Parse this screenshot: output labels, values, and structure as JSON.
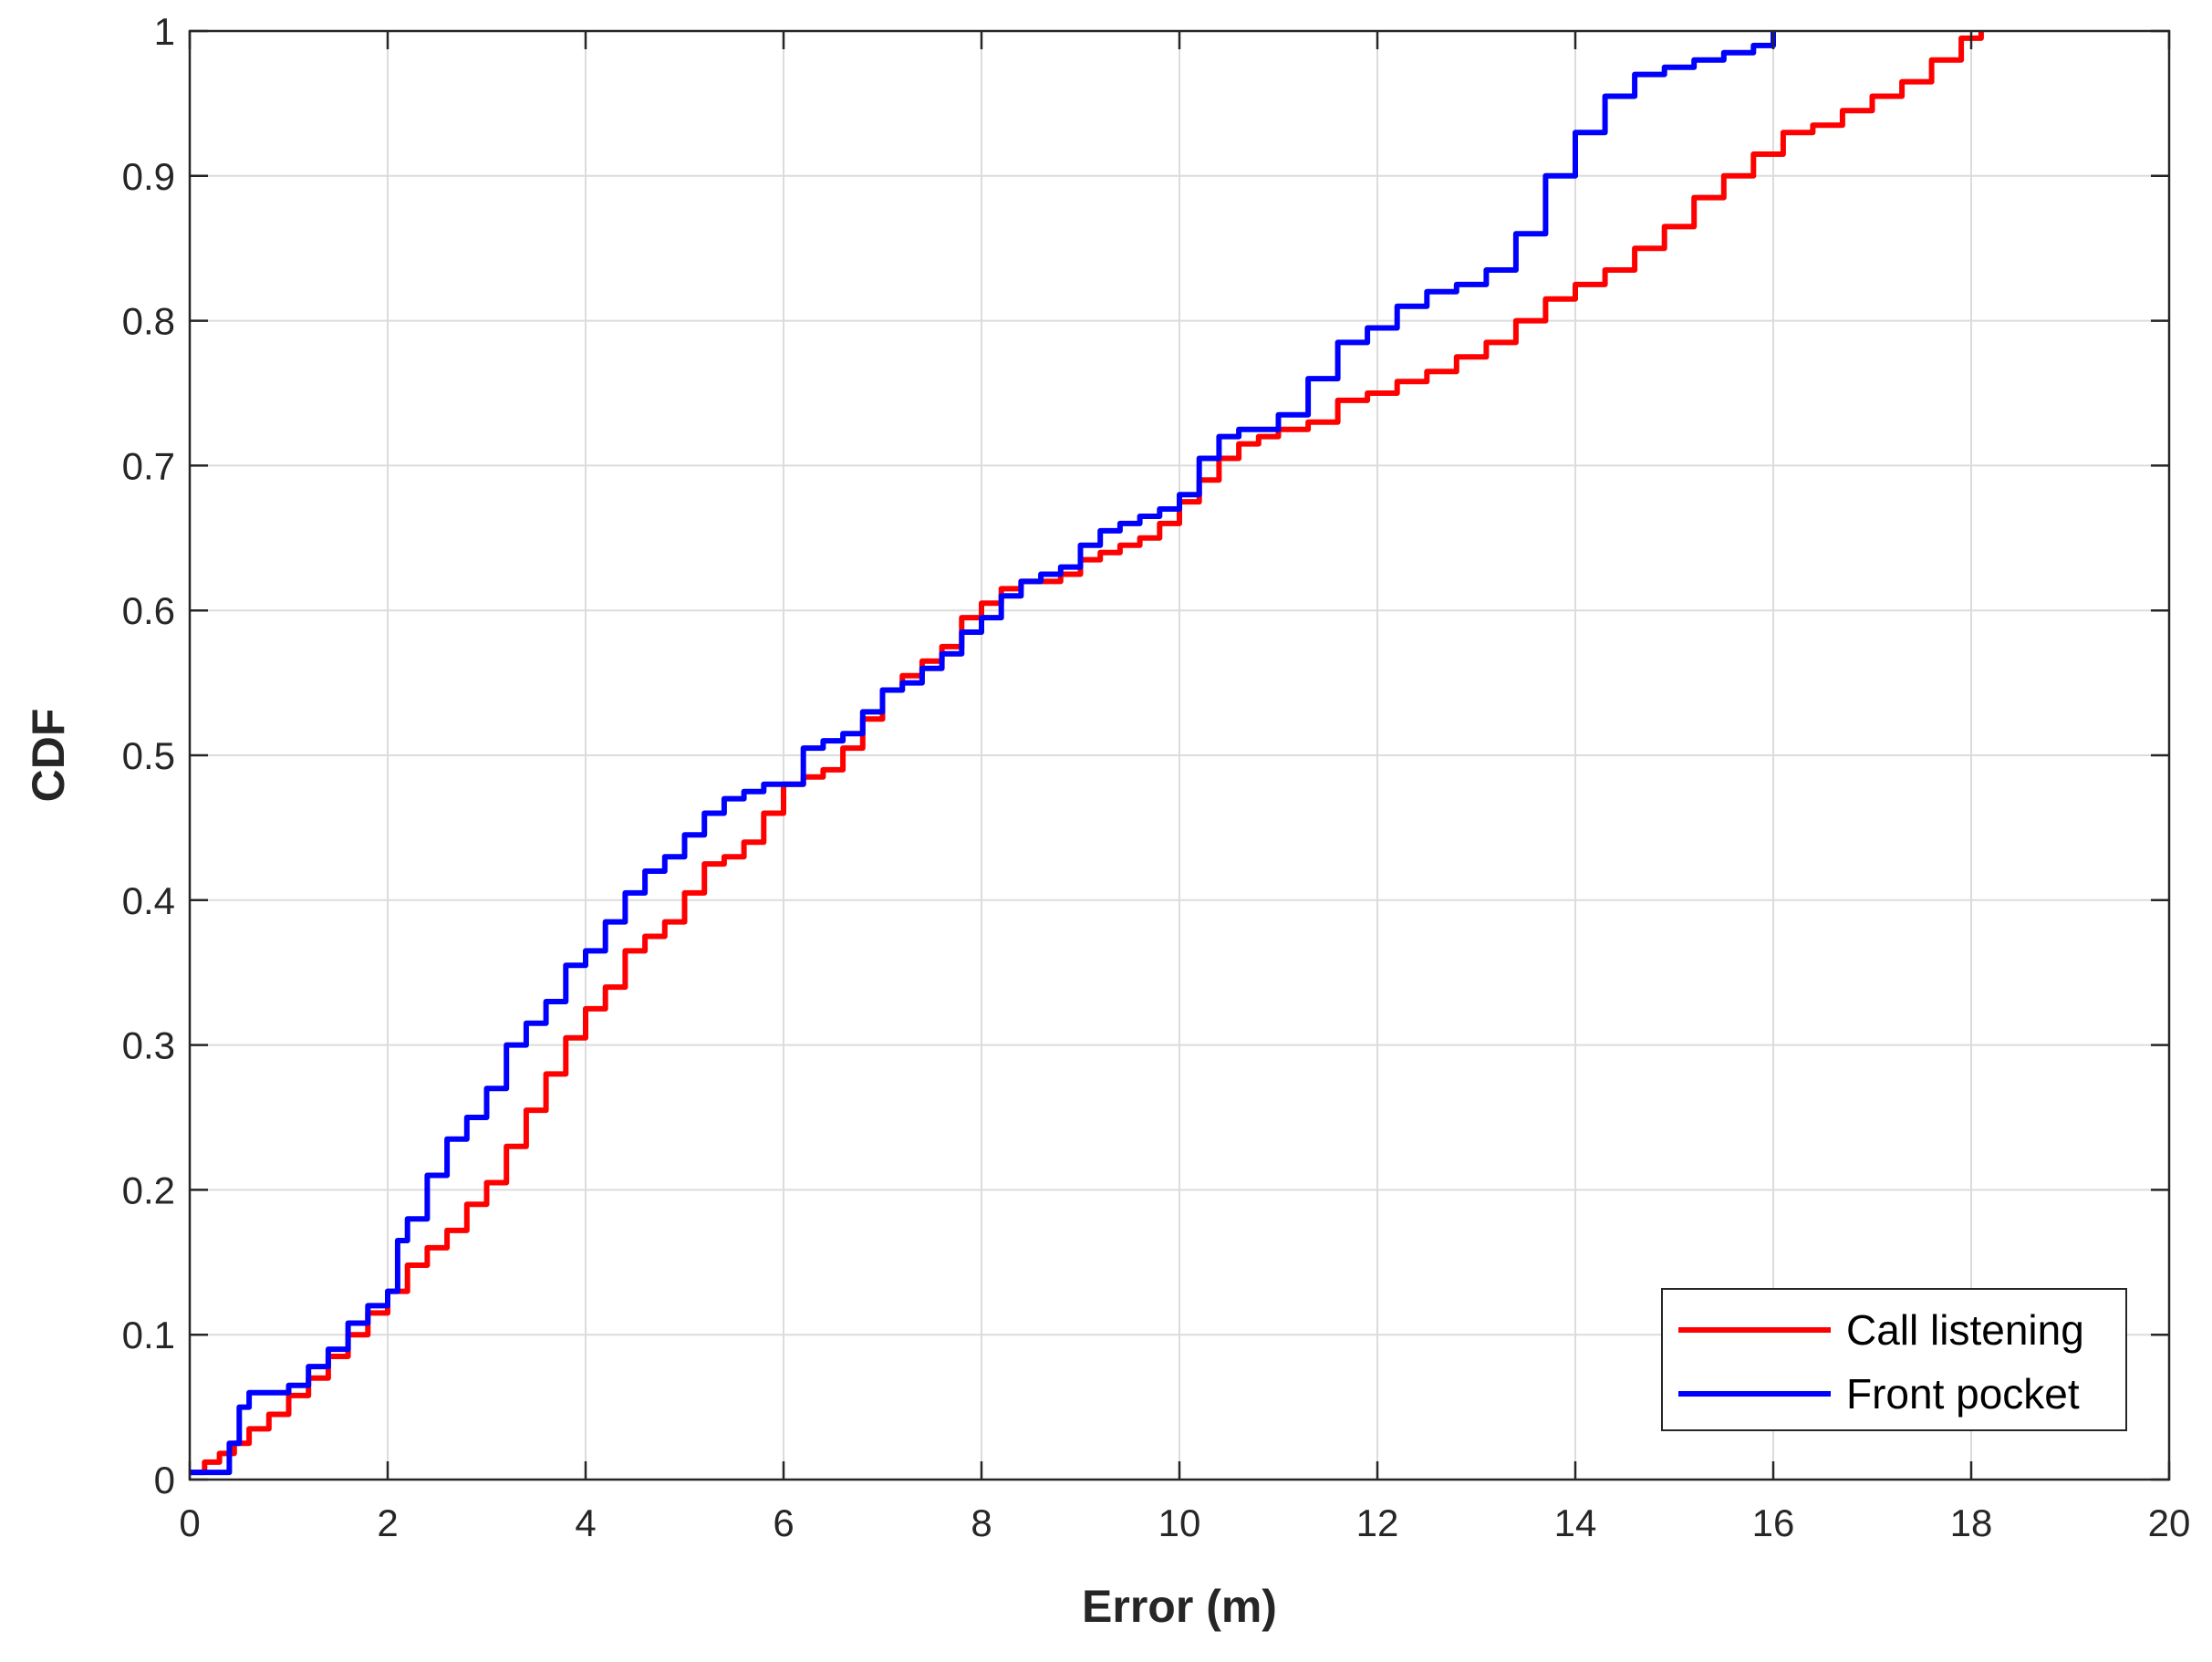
{
  "chart_data": {
    "type": "line",
    "title": "",
    "xlabel": "Error (m)",
    "ylabel": "CDF",
    "xlim": [
      0,
      20
    ],
    "ylim": [
      0,
      1
    ],
    "xticks": [
      0,
      2,
      4,
      6,
      8,
      10,
      12,
      14,
      16,
      18,
      20
    ],
    "yticks": [
      0,
      0.1,
      0.2,
      0.3,
      0.4,
      0.5,
      0.6,
      0.7,
      0.8,
      0.9,
      1
    ],
    "xtick_labels": [
      "0",
      "2",
      "4",
      "6",
      "8",
      "10",
      "12",
      "14",
      "16",
      "18",
      "20"
    ],
    "ytick_labels": [
      "0",
      "0.1",
      "0.2",
      "0.3",
      "0.4",
      "0.5",
      "0.6",
      "0.7",
      "0.8",
      "0.9",
      "1"
    ],
    "grid": true,
    "legend": {
      "position": "bottom-right"
    },
    "series": [
      {
        "name": "Call listening",
        "color": "#ff0000",
        "x": [
          0,
          0.15,
          0.3,
          0.45,
          0.6,
          0.8,
          1.0,
          1.2,
          1.4,
          1.6,
          1.8,
          2.0,
          2.2,
          2.4,
          2.6,
          2.8,
          3.0,
          3.2,
          3.4,
          3.6,
          3.8,
          4.0,
          4.2,
          4.4,
          4.6,
          4.8,
          5.0,
          5.2,
          5.4,
          5.6,
          5.8,
          6.0,
          6.2,
          6.4,
          6.6,
          6.8,
          7.0,
          7.2,
          7.4,
          7.6,
          7.8,
          8.0,
          8.2,
          8.4,
          8.6,
          8.8,
          9.0,
          9.2,
          9.4,
          9.6,
          9.8,
          10.0,
          10.2,
          10.4,
          10.6,
          10.8,
          11.0,
          11.3,
          11.6,
          11.9,
          12.2,
          12.5,
          12.8,
          13.1,
          13.4,
          13.7,
          14.0,
          14.3,
          14.6,
          14.9,
          15.2,
          15.5,
          15.8,
          16.1,
          16.4,
          16.7,
          17.0,
          17.3,
          17.6,
          17.9,
          18.1
        ],
        "y": [
          0.005,
          0.012,
          0.018,
          0.025,
          0.035,
          0.045,
          0.058,
          0.07,
          0.085,
          0.1,
          0.115,
          0.13,
          0.148,
          0.16,
          0.172,
          0.19,
          0.205,
          0.23,
          0.255,
          0.28,
          0.305,
          0.325,
          0.34,
          0.365,
          0.375,
          0.385,
          0.405,
          0.425,
          0.43,
          0.44,
          0.46,
          0.48,
          0.485,
          0.49,
          0.505,
          0.525,
          0.545,
          0.555,
          0.565,
          0.575,
          0.595,
          0.605,
          0.615,
          0.62,
          0.62,
          0.625,
          0.635,
          0.64,
          0.645,
          0.65,
          0.66,
          0.675,
          0.69,
          0.705,
          0.715,
          0.72,
          0.725,
          0.73,
          0.745,
          0.75,
          0.758,
          0.765,
          0.775,
          0.785,
          0.8,
          0.815,
          0.825,
          0.835,
          0.85,
          0.865,
          0.885,
          0.9,
          0.915,
          0.93,
          0.935,
          0.945,
          0.955,
          0.965,
          0.98,
          0.995,
          1.0
        ]
      },
      {
        "name": "Front pocket",
        "color": "#0000ff",
        "x": [
          0,
          0.3,
          0.4,
          0.5,
          0.6,
          0.8,
          1.0,
          1.2,
          1.4,
          1.6,
          1.8,
          2.0,
          2.1,
          2.2,
          2.4,
          2.6,
          2.8,
          3.0,
          3.2,
          3.4,
          3.6,
          3.8,
          4.0,
          4.2,
          4.4,
          4.6,
          4.8,
          5.0,
          5.2,
          5.4,
          5.6,
          5.8,
          6.0,
          6.2,
          6.4,
          6.6,
          6.8,
          7.0,
          7.2,
          7.4,
          7.6,
          7.8,
          8.0,
          8.2,
          8.4,
          8.6,
          8.8,
          9.0,
          9.2,
          9.4,
          9.6,
          9.8,
          10.0,
          10.2,
          10.4,
          10.6,
          10.8,
          11.0,
          11.3,
          11.6,
          11.9,
          12.2,
          12.5,
          12.8,
          13.1,
          13.4,
          13.7,
          14.0,
          14.3,
          14.6,
          14.9,
          15.2,
          15.5,
          15.8,
          16.0
        ],
        "y": [
          0.005,
          0.005,
          0.025,
          0.05,
          0.06,
          0.06,
          0.065,
          0.078,
          0.09,
          0.108,
          0.12,
          0.13,
          0.165,
          0.18,
          0.21,
          0.235,
          0.25,
          0.27,
          0.3,
          0.315,
          0.33,
          0.355,
          0.365,
          0.385,
          0.405,
          0.42,
          0.43,
          0.445,
          0.46,
          0.47,
          0.475,
          0.48,
          0.48,
          0.505,
          0.51,
          0.515,
          0.53,
          0.545,
          0.55,
          0.56,
          0.57,
          0.585,
          0.595,
          0.61,
          0.62,
          0.625,
          0.63,
          0.645,
          0.655,
          0.66,
          0.665,
          0.67,
          0.68,
          0.705,
          0.72,
          0.725,
          0.725,
          0.735,
          0.76,
          0.785,
          0.795,
          0.81,
          0.82,
          0.825,
          0.835,
          0.86,
          0.9,
          0.93,
          0.955,
          0.97,
          0.975,
          0.98,
          0.985,
          0.99,
          1.0
        ]
      }
    ]
  }
}
